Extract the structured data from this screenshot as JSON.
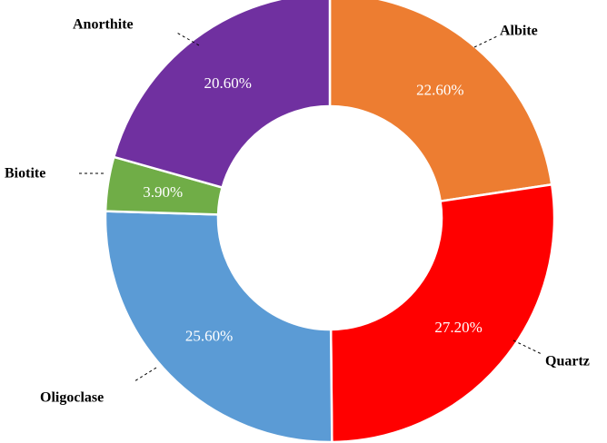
{
  "chart_data": {
    "type": "pie",
    "subtype": "donut",
    "categories": [
      "Albite",
      "Quartz",
      "Oligoclase",
      "Biotite",
      "Anorthite"
    ],
    "values": [
      22.6,
      27.2,
      25.6,
      3.9,
      20.6
    ],
    "value_labels": [
      "22.60%",
      "27.20%",
      "25.60%",
      "3.90%",
      "20.60%"
    ],
    "colors": [
      "#ED7D31",
      "#FF0000",
      "#5B9BD5",
      "#70AD47",
      "#7030A0"
    ],
    "title": "",
    "legend": "none"
  }
}
